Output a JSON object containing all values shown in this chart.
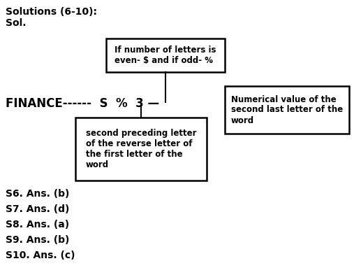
{
  "title_line1": "Solutions (6-10):",
  "title_line2": "Sol.",
  "box_top_text": "If number of letters is\neven- $ and if odd- %",
  "box_bottom_text": "second preceding letter\nof the reverse letter of\nthe first letter of the\nword",
  "box_right_text": "Numerical value of the\nsecond last letter of the\nword",
  "main_text": "FINANCE------  S  %  3 —",
  "answers": [
    "S6. Ans. (b)",
    "S7. Ans. (d)",
    "S8. Ans. (a)",
    "S9. Ans. (b)",
    "S10. Ans. (c)"
  ],
  "bg_color": "#ffffff",
  "text_color": "#000000"
}
